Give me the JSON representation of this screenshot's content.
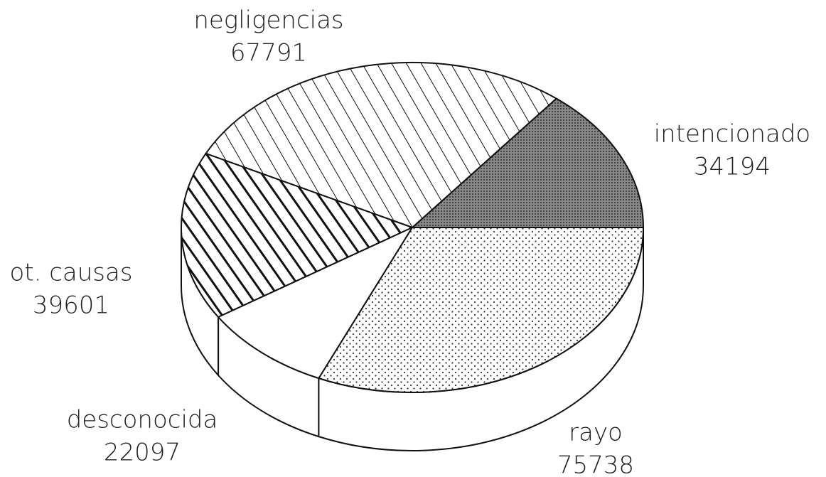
{
  "chart_data": {
    "type": "pie3d",
    "categories": [
      "intencionado",
      "negligencias",
      "ot. causas",
      "desconocida",
      "rayo"
    ],
    "values": [
      34194,
      67791,
      39601,
      22097,
      75738
    ]
  }
}
